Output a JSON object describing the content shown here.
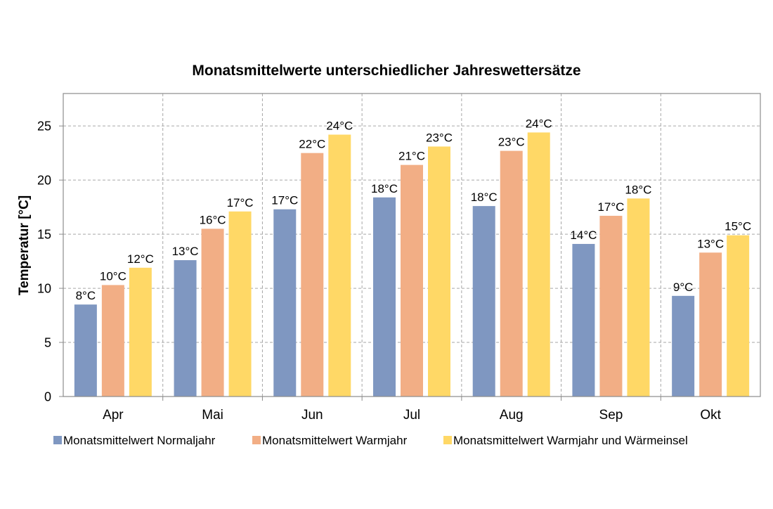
{
  "chart_data": {
    "type": "bar",
    "title": "Monatsmittelwerte unterschiedlicher Jahreswettersätze",
    "xlabel": "",
    "ylabel": "Temperatur [°C]",
    "ylim": [
      0,
      28
    ],
    "yticks": [
      0,
      5,
      10,
      15,
      20,
      25
    ],
    "categories": [
      "Apr",
      "Mai",
      "Jun",
      "Jul",
      "Aug",
      "Sep",
      "Okt"
    ],
    "grid": true,
    "grid_style": "dashed",
    "legend_position": "bottom",
    "series": [
      {
        "name": "Monatsmittelwert Normaljahr",
        "color": "#7f97c1",
        "values": [
          8.5,
          12.6,
          17.3,
          18.4,
          17.6,
          14.1,
          9.3
        ],
        "labels": [
          "8°C",
          "13°C",
          "17°C",
          "18°C",
          "18°C",
          "14°C",
          "9°C"
        ]
      },
      {
        "name": "Monatsmittelwert Warmjahr",
        "color": "#f2ae85",
        "values": [
          10.3,
          15.5,
          22.5,
          21.4,
          22.7,
          16.7,
          13.3
        ],
        "labels": [
          "10°C",
          "16°C",
          "22°C",
          "21°C",
          "23°C",
          "17°C",
          "13°C"
        ]
      },
      {
        "name": "Monatsmittelwert Warmjahr und Wärmeinsel",
        "color": "#ffd866",
        "values": [
          11.9,
          17.1,
          24.2,
          23.1,
          24.4,
          18.3,
          14.9
        ],
        "labels": [
          "12°C",
          "17°C",
          "24°C",
          "23°C",
          "24°C",
          "18°C",
          "15°C"
        ]
      }
    ]
  }
}
